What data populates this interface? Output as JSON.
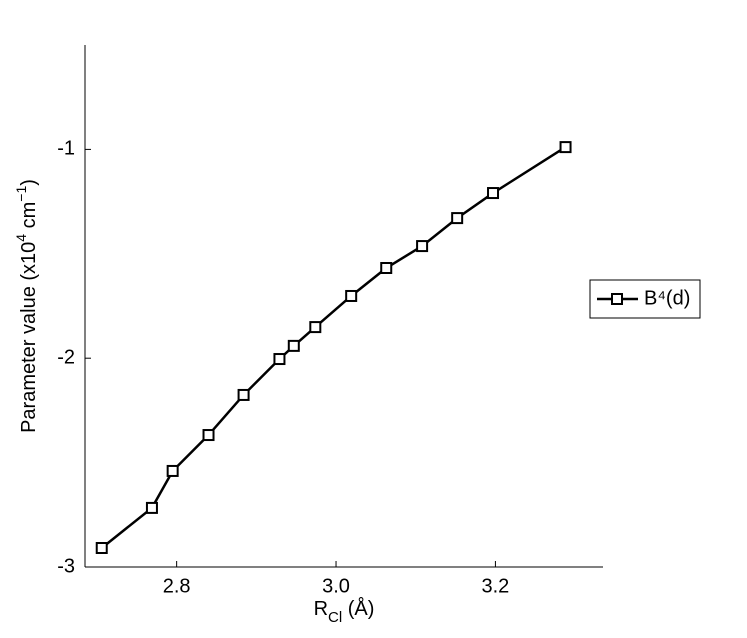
{
  "chart_data": {
    "type": "line",
    "xlabel": [
      "R",
      "Cl",
      " (Å)"
    ],
    "ylabel": [
      "Parameter value (x10",
      "4",
      " cm",
      "−1",
      ")"
    ],
    "x": [
      2.706,
      2.769,
      2.795,
      2.84,
      2.884,
      2.929,
      2.947,
      2.974,
      3.019,
      3.063,
      3.108,
      3.152,
      3.197,
      3.288
    ],
    "series": [
      {
        "name": "B⁴(d)",
        "color": "#000000",
        "values": [
          -2.909,
          -2.717,
          -2.54,
          -2.368,
          -2.176,
          -2.004,
          -1.941,
          -1.851,
          -1.702,
          -1.568,
          -1.463,
          -1.329,
          -1.209,
          -0.989
        ]
      }
    ],
    "xlim": [
      2.685,
      3.335
    ],
    "ylim": [
      -3,
      -0.5
    ],
    "xticks": [
      {
        "value": 2.8,
        "label": "2.8"
      },
      {
        "value": 3.0,
        "label": "3.0"
      },
      {
        "value": 3.2,
        "label": "3.2"
      }
    ],
    "yticks": [
      -3,
      -2,
      -1
    ],
    "grid": false,
    "legend": "right",
    "marker": "square"
  }
}
